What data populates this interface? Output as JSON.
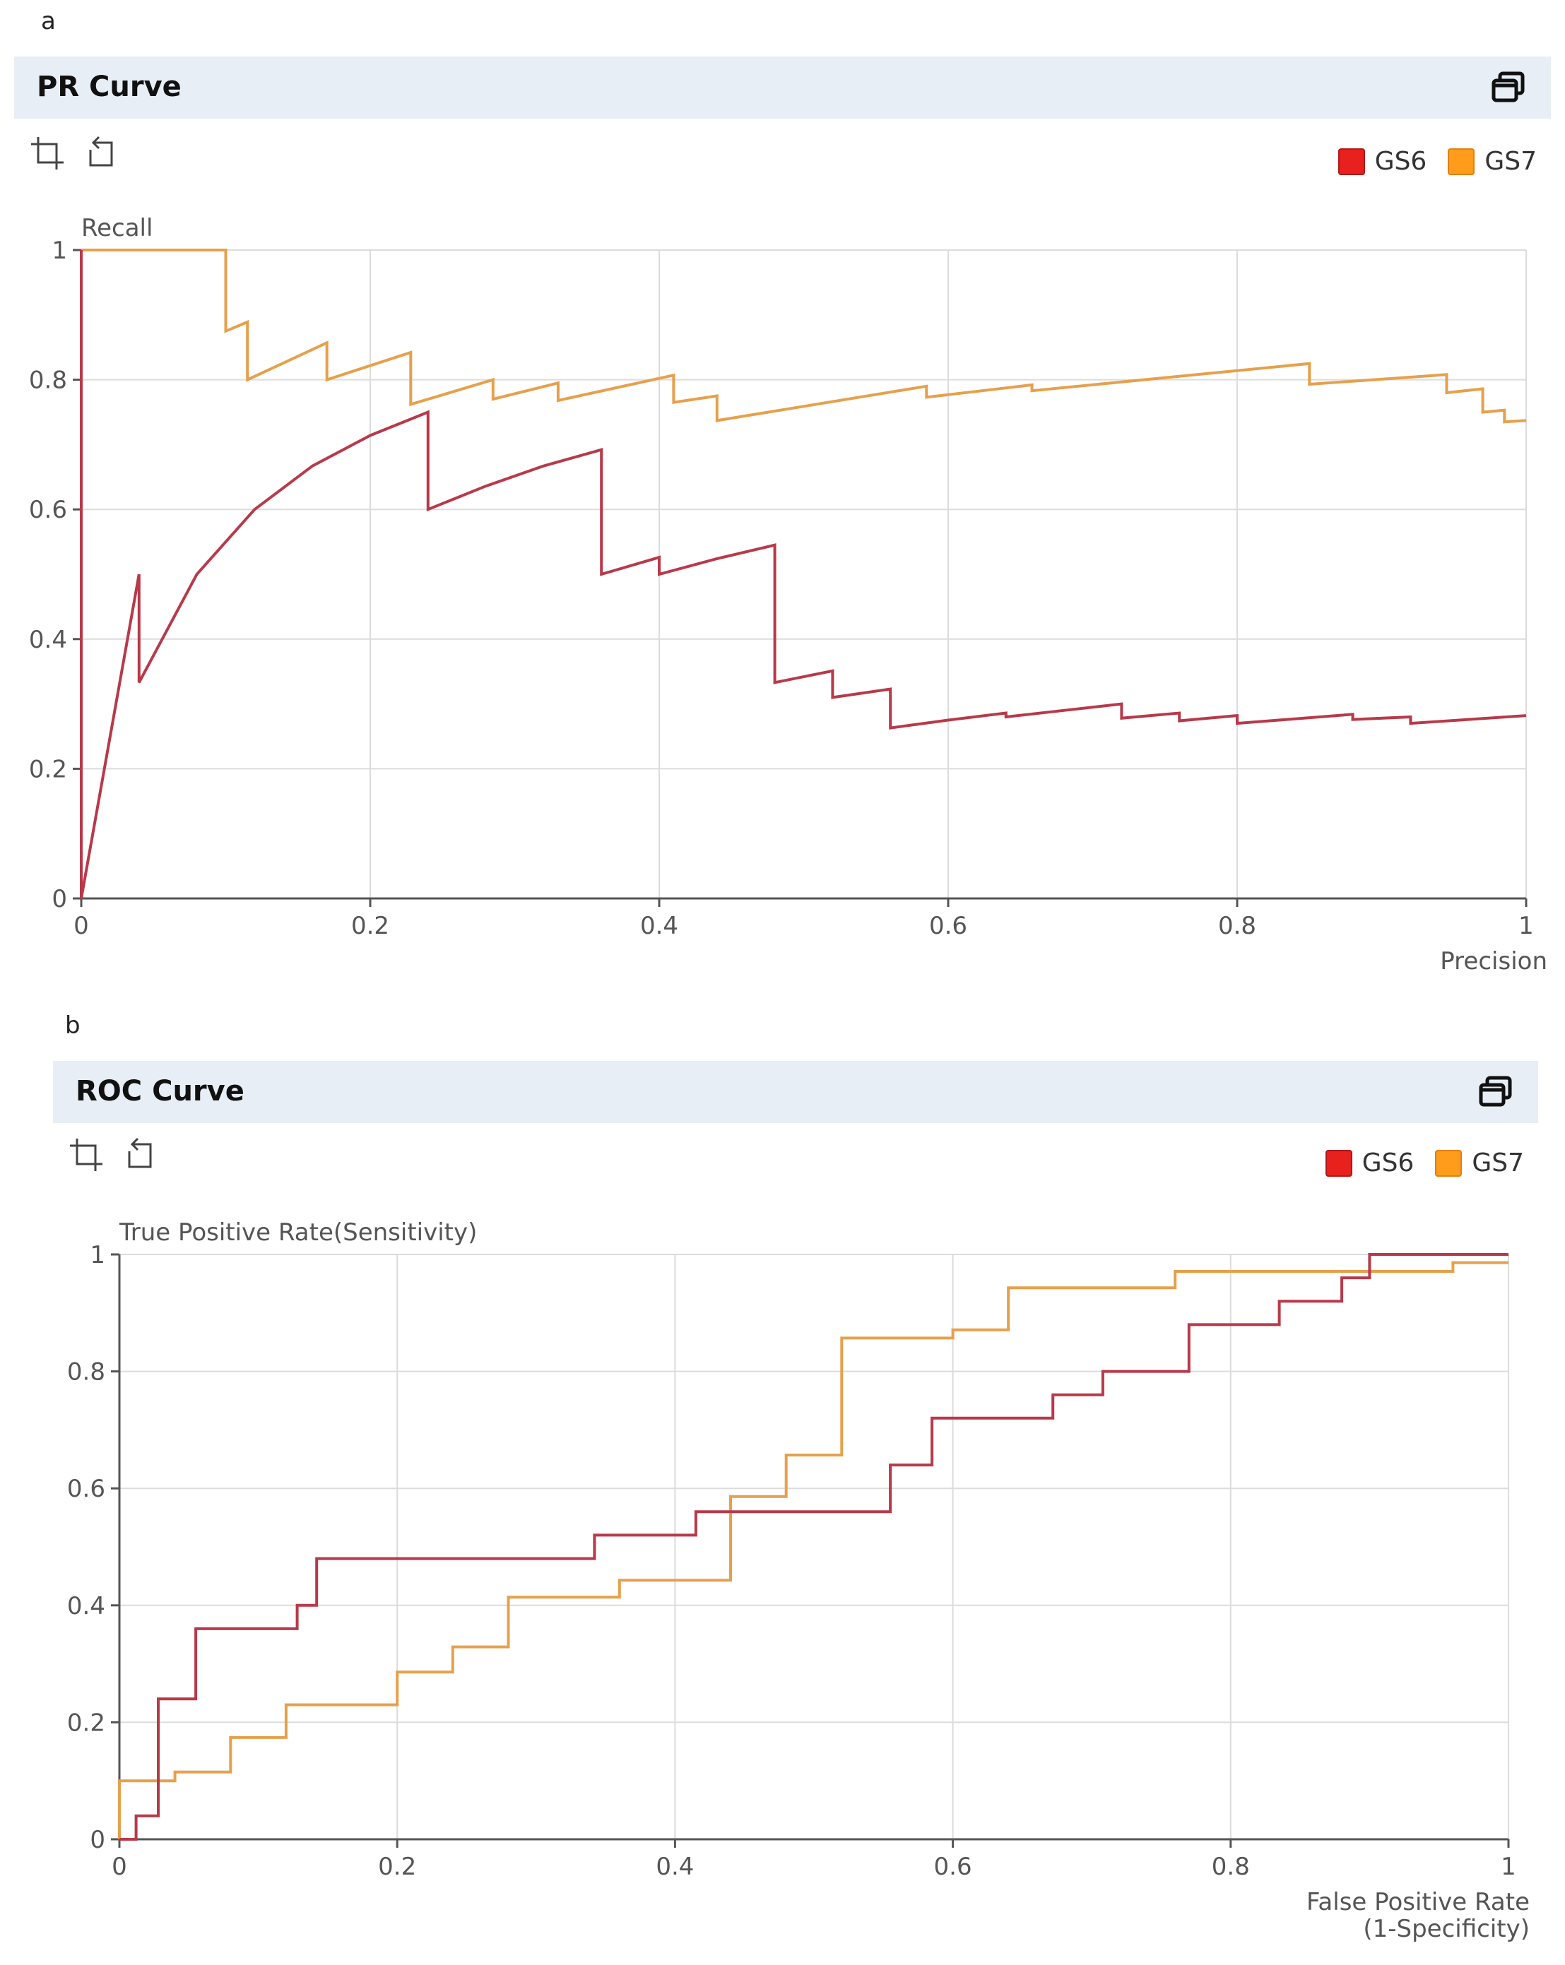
{
  "chart_data": [
    {
      "panel_label": "a",
      "title": "PR Curve",
      "type": "line",
      "xlabel": "Precision",
      "ylabel": "Recall",
      "xlim": [
        0,
        1
      ],
      "ylim": [
        0,
        1
      ],
      "xticks": [
        "0",
        "0.2",
        "0.4",
        "0.6",
        "0.8",
        "1"
      ],
      "yticks": [
        "0",
        "0.2",
        "0.4",
        "0.6",
        "0.8",
        "1"
      ],
      "grid": true,
      "legend_position": "top-right",
      "series": [
        {
          "name": "GS6",
          "color": "#b8394a",
          "legend_color": "#e8201e",
          "x": [
            0.0,
            0.0,
            0.04,
            0.04,
            0.08,
            0.12,
            0.16,
            0.2,
            0.24,
            0.24,
            0.28,
            0.32,
            0.36,
            0.36,
            0.4,
            0.4,
            0.44,
            0.48,
            0.48,
            0.52,
            0.52,
            0.56,
            0.56,
            0.6,
            0.64,
            0.64,
            0.68,
            0.72,
            0.72,
            0.76,
            0.76,
            0.8,
            0.8,
            0.84,
            0.88,
            0.88,
            0.92,
            0.92,
            0.96,
            1.0
          ],
          "y": [
            1.0,
            0.0,
            0.5,
            0.333,
            0.5,
            0.6,
            0.667,
            0.714,
            0.75,
            0.6,
            0.636,
            0.667,
            0.692,
            0.5,
            0.526,
            0.5,
            0.524,
            0.545,
            0.333,
            0.351,
            0.31,
            0.323,
            0.263,
            0.275,
            0.286,
            0.28,
            0.29,
            0.3,
            0.278,
            0.286,
            0.274,
            0.282,
            0.27,
            0.277,
            0.284,
            0.276,
            0.28,
            0.27,
            0.276,
            0.282
          ]
        },
        {
          "name": "GS7",
          "color": "#e6a04c",
          "legend_color": "#ff9c1c",
          "x": [
            0.0,
            0.1,
            0.1,
            0.115,
            0.115,
            0.17,
            0.17,
            0.228,
            0.228,
            0.285,
            0.285,
            0.33,
            0.33,
            0.41,
            0.41,
            0.44,
            0.44,
            0.585,
            0.585,
            0.658,
            0.658,
            0.85,
            0.85,
            0.945,
            0.945,
            0.97,
            0.97,
            0.985,
            0.985,
            1.0
          ],
          "y": [
            1.0,
            1.0,
            0.875,
            0.889,
            0.8,
            0.857,
            0.8,
            0.842,
            0.762,
            0.8,
            0.77,
            0.795,
            0.768,
            0.807,
            0.765,
            0.775,
            0.737,
            0.79,
            0.773,
            0.792,
            0.783,
            0.825,
            0.793,
            0.808,
            0.78,
            0.786,
            0.75,
            0.753,
            0.735,
            0.737
          ]
        }
      ]
    },
    {
      "panel_label": "b",
      "title": "ROC Curve",
      "type": "line",
      "xlabel": "False Positive Rate",
      "xlabel_line2": "(1-Specificity)",
      "ylabel": "True Positive Rate(Sensitivity)",
      "xlim": [
        0,
        1
      ],
      "ylim": [
        0,
        1
      ],
      "xticks": [
        "0",
        "0.2",
        "0.4",
        "0.6",
        "0.8",
        "1"
      ],
      "yticks": [
        "0",
        "0.2",
        "0.4",
        "0.6",
        "0.8",
        "1"
      ],
      "grid": true,
      "legend_position": "top-right",
      "series": [
        {
          "name": "GS6",
          "color": "#b8394a",
          "legend_color": "#e8201e",
          "x": [
            0.0,
            0.012,
            0.012,
            0.028,
            0.028,
            0.055,
            0.055,
            0.128,
            0.128,
            0.142,
            0.142,
            0.342,
            0.342,
            0.415,
            0.415,
            0.555,
            0.555,
            0.585,
            0.585,
            0.625,
            0.625,
            0.672,
            0.672,
            0.708,
            0.708,
            0.77,
            0.77,
            0.798,
            0.798,
            0.835,
            0.835,
            0.88,
            0.88,
            0.9,
            0.9,
            1.0
          ],
          "y": [
            0.0,
            0.0,
            0.04,
            0.04,
            0.24,
            0.24,
            0.36,
            0.36,
            0.4,
            0.4,
            0.48,
            0.48,
            0.52,
            0.52,
            0.56,
            0.56,
            0.64,
            0.64,
            0.72,
            0.72,
            0.72,
            0.72,
            0.76,
            0.76,
            0.8,
            0.8,
            0.88,
            0.88,
            0.88,
            0.88,
            0.92,
            0.92,
            0.96,
            0.96,
            1.0,
            1.0
          ]
        },
        {
          "name": "GS7",
          "color": "#e6a04c",
          "legend_color": "#ff9c1c",
          "x": [
            0.0,
            0.0,
            0.04,
            0.04,
            0.08,
            0.08,
            0.12,
            0.12,
            0.2,
            0.2,
            0.24,
            0.24,
            0.28,
            0.28,
            0.36,
            0.36,
            0.44,
            0.44,
            0.48,
            0.48,
            0.52,
            0.52,
            0.6,
            0.6,
            0.64,
            0.64,
            0.76,
            0.76,
            0.88,
            0.88,
            0.96,
            0.96,
            1.0
          ],
          "y": [
            0.0,
            0.1,
            0.1,
            0.115,
            0.115,
            0.174,
            0.174,
            0.23,
            0.23,
            0.286,
            0.286,
            0.329,
            0.329,
            0.414,
            0.414,
            0.443,
            0.443,
            0.586,
            0.586,
            0.657,
            0.657,
            0.857,
            0.857,
            0.871,
            0.871,
            0.943,
            0.943,
            0.971,
            0.971,
            0.971,
            0.971,
            0.986,
            0.986
          ]
        }
      ]
    }
  ]
}
